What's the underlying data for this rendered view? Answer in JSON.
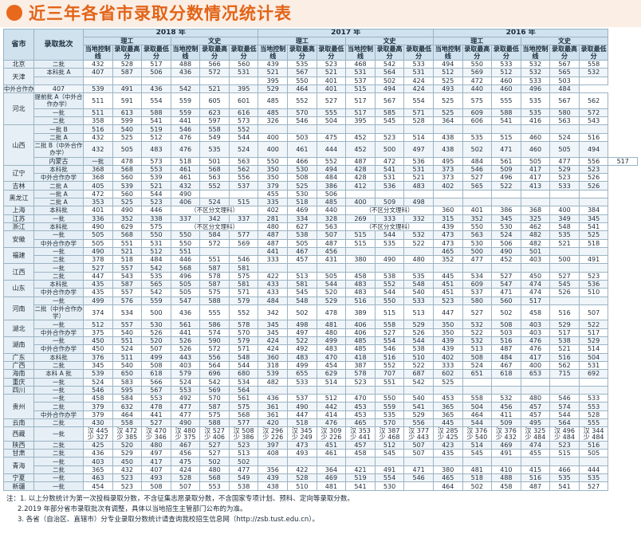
{
  "title": "近三年各省市录取分数情况统计表",
  "header": {
    "province": "省市",
    "batch": "录取批次",
    "years": [
      "2018 年",
      "2017 年",
      "2016 年"
    ],
    "groups": [
      "理工",
      "文史"
    ],
    "cols": [
      "当地控制线",
      "录取最高分",
      "录取最低分"
    ]
  },
  "rows": [
    {
      "p": "北京",
      "ps": 1,
      "b": "二批",
      "d": [
        "432",
        "528",
        "517",
        "488",
        "566",
        "560",
        "439",
        "535",
        "523",
        "468",
        "542",
        "533",
        "494",
        "550",
        "533",
        "532",
        "567",
        "558"
      ]
    },
    {
      "p": "天津",
      "ps": 2,
      "b": "本科批 A",
      "d": [
        "407",
        "587",
        "506",
        "436",
        "572",
        "531",
        "521",
        "567",
        "521",
        "531",
        "564",
        "531",
        "512",
        "569",
        "512",
        "532",
        "565",
        "532"
      ]
    },
    {
      "p": null,
      "b": "",
      "d": [
        "",
        "",
        "",
        "",
        "",
        "",
        "395",
        "550",
        "401",
        "537",
        "502",
        "424",
        "525",
        "472",
        "460",
        "533",
        "503",
        ""
      ]
    },
    {
      "p": null,
      "b": "中外合作办学",
      "d": [
        "407",
        "539",
        "491",
        "436",
        "542",
        "521",
        "395",
        "529",
        "464",
        "401",
        "515",
        "494",
        "424",
        "493",
        "440",
        "460",
        "496",
        "484"
      ]
    },
    {
      "p": "河北",
      "ps": 3,
      "b": "提前批 A（中外合作办学）",
      "d": [
        "511",
        "591",
        "554",
        "559",
        "605",
        "601",
        "485",
        "552",
        "527",
        "517",
        "567",
        "554",
        "525",
        "575",
        "555",
        "535",
        "567",
        "562"
      ]
    },
    {
      "p": null,
      "b": "一批",
      "d": [
        "511",
        "613",
        "588",
        "559",
        "623",
        "616",
        "485",
        "570",
        "555",
        "517",
        "585",
        "571",
        "525",
        "609",
        "588",
        "535",
        "580",
        "572"
      ]
    },
    {
      "p": null,
      "b": "二批",
      "d": [
        "358",
        "599",
        "541",
        "441",
        "597",
        "573",
        "326",
        "546",
        "504",
        "395",
        "545",
        "528",
        "364",
        "606",
        "541",
        "416",
        "563",
        "543"
      ]
    },
    {
      "p": "山西",
      "ps": 4,
      "b": "一批 B",
      "d": [
        "516",
        "540",
        "519",
        "546",
        "558",
        "552",
        "",
        "",
        "",
        "",
        "",
        "",
        "",
        "",
        "",
        "",
        "",
        ""
      ]
    },
    {
      "p": null,
      "b": "二批 A",
      "d": [
        "432",
        "525",
        "512",
        "476",
        "549",
        "544",
        "400",
        "503",
        "475",
        "452",
        "523",
        "514",
        "438",
        "535",
        "515",
        "460",
        "524",
        "516"
      ]
    },
    {
      "p": null,
      "b": "二批 B（中外合作办学）",
      "d": [
        "432",
        "505",
        "483",
        "476",
        "535",
        "524",
        "400",
        "461",
        "444",
        "452",
        "500",
        "497",
        "438",
        "502",
        "471",
        "460",
        "505",
        "494"
      ]
    },
    {
      "p": "内蒙古",
      "ps": 1,
      "b": "一批",
      "d": [
        "478",
        "573",
        "518",
        "501",
        "563",
        "550",
        "466",
        "552",
        "487",
        "472",
        "536",
        "495",
        "484",
        "561",
        "505",
        "477",
        "556",
        "517"
      ]
    },
    {
      "p": "辽宁",
      "ps": 2,
      "b": "本科批",
      "d": [
        "368",
        "568",
        "553",
        "461",
        "568",
        "562",
        "350",
        "530",
        "494",
        "428",
        "541",
        "531",
        "373",
        "546",
        "509",
        "417",
        "529",
        "523"
      ]
    },
    {
      "p": null,
      "b": "中外合作办学",
      "d": [
        "368",
        "560",
        "539",
        "461",
        "563",
        "556",
        "350",
        "508",
        "484",
        "428",
        "531",
        "521",
        "373",
        "527",
        "496",
        "417",
        "523",
        "526"
      ]
    },
    {
      "p": "吉林",
      "ps": 1,
      "b": "二批 A",
      "d": [
        "405",
        "539",
        "521",
        "432",
        "552",
        "537",
        "379",
        "525",
        "386",
        "412",
        "536",
        "483",
        "402",
        "565",
        "522",
        "413",
        "533",
        "526"
      ]
    },
    {
      "p": "黑龙江",
      "ps": 2,
      "b": "一批 A",
      "d": [
        "472",
        "560",
        "544",
        "490",
        "",
        "",
        "455",
        "530",
        "506",
        "",
        "",
        "",
        "",
        "",
        "",
        "",
        "",
        ""
      ]
    },
    {
      "p": null,
      "b": "二批 A",
      "d": [
        "353",
        "525",
        "523",
        "406",
        "524",
        "515",
        "335",
        "518",
        "485",
        "400",
        "509",
        "498",
        "",
        "",
        "",
        "",
        "",
        ""
      ]
    },
    {
      "p": "上海",
      "ps": 1,
      "b": "本科批",
      "span": "（不区分文理科）",
      "d": [
        "401",
        "490",
        "446",
        "",
        "",
        "",
        "402",
        "469",
        "440",
        "",
        "",
        "",
        "360",
        "401",
        "386",
        "368",
        "400",
        "384"
      ]
    },
    {
      "p": "江苏",
      "ps": 1,
      "b": "一批",
      "d": [
        "336",
        "352",
        "338",
        "337",
        "342",
        "337",
        "281",
        "334",
        "328",
        "269",
        "333",
        "332",
        "315",
        "352",
        "345",
        "325",
        "349",
        "345"
      ]
    },
    {
      "p": "浙江",
      "ps": 1,
      "b": "本科批",
      "span": "（不区分文理科）",
      "d": [
        "490",
        "629",
        "575",
        "",
        "",
        "",
        "480",
        "627",
        "563",
        "",
        "",
        "",
        "439",
        "550",
        "530",
        "462",
        "548",
        "541"
      ]
    },
    {
      "p": "安徽",
      "ps": 2,
      "b": "一批",
      "d": [
        "505",
        "568",
        "550",
        "550",
        "584",
        "577",
        "487",
        "538",
        "507",
        "515",
        "544",
        "532",
        "473",
        "563",
        "524",
        "482",
        "535",
        "525"
      ]
    },
    {
      "p": null,
      "b": "中外合作办学",
      "d": [
        "505",
        "551",
        "531",
        "550",
        "572",
        "569",
        "487",
        "505",
        "487",
        "515",
        "535",
        "522",
        "473",
        "530",
        "506",
        "482",
        "521",
        "518"
      ]
    },
    {
      "p": "福建",
      "ps": 2,
      "b": "一批",
      "d": [
        "490",
        "521",
        "512",
        "551",
        "",
        "",
        "441",
        "467",
        "456",
        "",
        "",
        "",
        "465",
        "500",
        "490",
        "501",
        "",
        ""
      ]
    },
    {
      "p": null,
      "b": "二批",
      "d": [
        "378",
        "518",
        "484",
        "446",
        "551",
        "546",
        "333",
        "457",
        "431",
        "380",
        "490",
        "480",
        "352",
        "477",
        "452",
        "403",
        "500",
        "491"
      ]
    },
    {
      "p": "江西",
      "ps": 2,
      "b": "一批",
      "d": [
        "527",
        "557",
        "542",
        "568",
        "587",
        "581",
        "",
        "",
        "",
        "",
        "",
        "",
        "",
        "",
        "",
        "",
        "",
        ""
      ]
    },
    {
      "p": null,
      "b": "二批",
      "d": [
        "447",
        "543",
        "535",
        "496",
        "578",
        "575",
        "422",
        "513",
        "505",
        "458",
        "538",
        "535",
        "445",
        "534",
        "527",
        "450",
        "527",
        "523"
      ]
    },
    {
      "p": "山东",
      "ps": 2,
      "b": "本科批",
      "d": [
        "435",
        "587",
        "565",
        "505",
        "587",
        "581",
        "433",
        "581",
        "544",
        "483",
        "552",
        "548",
        "451",
        "609",
        "547",
        "474",
        "545",
        "536"
      ]
    },
    {
      "p": null,
      "b": "中外合作办学",
      "d": [
        "435",
        "557",
        "542",
        "505",
        "575",
        "571",
        "433",
        "545",
        "520",
        "483",
        "544",
        "540",
        "451",
        "537",
        "471",
        "474",
        "526",
        "510"
      ]
    },
    {
      "p": "河南",
      "ps": 2,
      "b": "一批",
      "d": [
        "499",
        "576",
        "559",
        "547",
        "588",
        "579",
        "484",
        "548",
        "529",
        "516",
        "550",
        "533",
        "523",
        "580",
        "560",
        "517",
        "",
        ""
      ]
    },
    {
      "p": null,
      "b": "二批（中外合作办学）",
      "d": [
        "374",
        "534",
        "500",
        "436",
        "555",
        "552",
        "342",
        "502",
        "478",
        "389",
        "515",
        "513",
        "447",
        "527",
        "502",
        "458",
        "516",
        "507"
      ]
    },
    {
      "p": "湖北",
      "ps": 2,
      "b": "一批",
      "d": [
        "512",
        "557",
        "530",
        "561",
        "586",
        "578",
        "345",
        "498",
        "481",
        "406",
        "558",
        "529",
        "350",
        "532",
        "508",
        "403",
        "529",
        "522"
      ]
    },
    {
      "p": null,
      "b": "中外合作办学",
      "d": [
        "375",
        "540",
        "526",
        "441",
        "574",
        "570",
        "345",
        "497",
        "480",
        "406",
        "527",
        "526",
        "350",
        "522",
        "503",
        "403",
        "517",
        "517"
      ]
    },
    {
      "p": "湖南",
      "ps": 2,
      "b": "一批",
      "d": [
        "450",
        "551",
        "520",
        "526",
        "590",
        "579",
        "424",
        "522",
        "499",
        "485",
        "554",
        "544",
        "439",
        "532",
        "516",
        "476",
        "538",
        "529"
      ]
    },
    {
      "p": null,
      "b": "中外合作办学",
      "d": [
        "450",
        "524",
        "507",
        "526",
        "572",
        "571",
        "424",
        "492",
        "483",
        "485",
        "546",
        "538",
        "439",
        "513",
        "487",
        "476",
        "521",
        "514"
      ]
    },
    {
      "p": "广东",
      "ps": 1,
      "b": "本科批",
      "d": [
        "376",
        "511",
        "499",
        "443",
        "556",
        "548",
        "360",
        "483",
        "470",
        "418",
        "516",
        "510",
        "402",
        "508",
        "484",
        "417",
        "516",
        "504"
      ]
    },
    {
      "p": "广西",
      "ps": 1,
      "b": "二批",
      "d": [
        "345",
        "540",
        "508",
        "403",
        "564",
        "544",
        "318",
        "499",
        "454",
        "387",
        "552",
        "522",
        "333",
        "524",
        "467",
        "400",
        "562",
        "531"
      ]
    },
    {
      "p": "海南",
      "ps": 1,
      "b": "本科 A 批",
      "d": [
        "539",
        "650",
        "618",
        "579",
        "696",
        "680",
        "539",
        "655",
        "629",
        "578",
        "707",
        "687",
        "602",
        "651",
        "618",
        "653",
        "715",
        "692"
      ]
    },
    {
      "p": "重庆",
      "ps": 1,
      "b": "一批",
      "d": [
        "524",
        "583",
        "566",
        "524",
        "542",
        "534",
        "482",
        "533",
        "514",
        "523",
        "551",
        "542",
        "525",
        "",
        "",
        "",
        "",
        ""
      ]
    },
    {
      "p": "四川",
      "ps": 1,
      "b": "一批",
      "d": [
        "546",
        "595",
        "567",
        "553",
        "569",
        "564",
        "",
        "",
        "",
        "",
        "",
        "",
        "",
        "",
        "",
        "",
        "",
        ""
      ]
    },
    {
      "p": "贵州",
      "ps": 3,
      "b": "一批",
      "d": [
        "458",
        "584",
        "553",
        "492",
        "570",
        "561",
        "436",
        "537",
        "512",
        "470",
        "550",
        "540",
        "453",
        "558",
        "532",
        "480",
        "546",
        "533"
      ]
    },
    {
      "p": null,
      "b": "二批",
      "d": [
        "379",
        "632",
        "478",
        "477",
        "587",
        "575",
        "361",
        "490",
        "442",
        "453",
        "559",
        "541",
        "365",
        "504",
        "456",
        "457",
        "574",
        "553"
      ]
    },
    {
      "p": null,
      "b": "中外合作办学",
      "d": [
        "379",
        "464",
        "441",
        "477",
        "575",
        "568",
        "361",
        "447",
        "414",
        "453",
        "535",
        "529",
        "365",
        "464",
        "411",
        "457",
        "544",
        "528"
      ]
    },
    {
      "p": "云南",
      "ps": 1,
      "b": "二批",
      "d": [
        "430",
        "558",
        "527",
        "490",
        "588",
        "577",
        "420",
        "518",
        "476",
        "465",
        "570",
        "556",
        "445",
        "544",
        "509",
        "495",
        "564",
        "555"
      ]
    },
    {
      "p": "西藏",
      "ps": 1,
      "b": "一批",
      "two": true,
      "d": [
        "汉 445",
        "汉 472",
        "汉 470",
        "汉 480",
        "汉 527",
        "汉 508",
        "汉 296",
        "汉 345",
        "汉 309",
        "汉 353",
        "汉 387",
        "汉 377",
        "汉 285",
        "汉 376",
        "汉 376",
        "汉 325",
        "汉 496",
        "汉 344"
      ],
      "d2": [
        "少 327",
        "少 385",
        "少 346",
        "少 375",
        "少 406",
        "少 386",
        "少 226",
        "少 249",
        "少 226",
        "少 441",
        "少 468",
        "少 443",
        "少 425",
        "少 540",
        "少 432",
        "少 484",
        "少 484",
        "少 484"
      ]
    },
    {
      "p": "陕西",
      "ps": 1,
      "b": "二批",
      "d": [
        "425",
        "520",
        "480",
        "467",
        "527",
        "523",
        "397",
        "473",
        "451",
        "457",
        "512",
        "507",
        "423",
        "514",
        "469",
        "474",
        "523",
        "516"
      ]
    },
    {
      "p": "甘肃",
      "ps": 1,
      "b": "二批",
      "d": [
        "436",
        "529",
        "497",
        "456",
        "527",
        "513",
        "408",
        "493",
        "461",
        "458",
        "545",
        "507",
        "435",
        "545",
        "491",
        "455",
        "515",
        "505"
      ]
    },
    {
      "p": "青海",
      "ps": 2,
      "b": "一批",
      "d": [
        "403",
        "450",
        "417",
        "475",
        "502",
        "502",
        "",
        "",
        "",
        "",
        "",
        "",
        "",
        "",
        "",
        "",
        "",
        ""
      ]
    },
    {
      "p": null,
      "b": "二批",
      "d": [
        "365",
        "432",
        "407",
        "424",
        "480",
        "477",
        "356",
        "422",
        "364",
        "421",
        "491",
        "471",
        "380",
        "481",
        "410",
        "415",
        "466",
        "444"
      ]
    },
    {
      "p": "宁夏",
      "ps": 1,
      "b": "一批",
      "d": [
        "463",
        "523",
        "493",
        "528",
        "568",
        "549",
        "439",
        "528",
        "469",
        "519",
        "554",
        "546",
        "465",
        "518",
        "488",
        "516",
        "535",
        "535"
      ]
    },
    {
      "p": "新疆",
      "ps": 1,
      "b": "一批",
      "d": [
        "454",
        "523",
        "508",
        "507",
        "553",
        "538",
        "438",
        "510",
        "481",
        "541",
        "530",
        "",
        "464",
        "502",
        "458",
        "487",
        "541",
        "527"
      ]
    }
  ],
  "notes": [
    "注：1. 以上分数统计为第一次投档录取分数，不含征集志愿录取分数，不含国家专项计划、预科、定向等录取分数。",
    "2.2019 年部分省市录取批次有调整，具体以当地招生主管部门公布的为准。",
    "3. 各省（自治区、直辖市）分专业录取分数统计请查询我校招生信息网（http://zsb.tust.edu.cn）。"
  ]
}
